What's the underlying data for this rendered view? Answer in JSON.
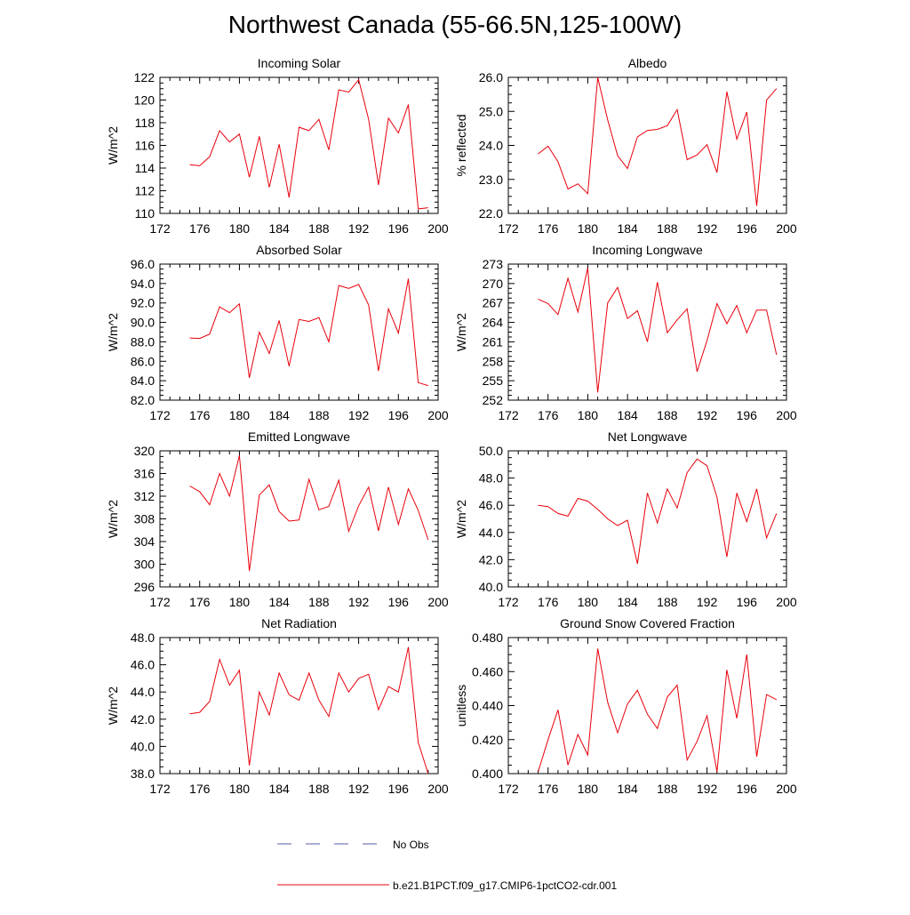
{
  "figure_title": "Northwest Canada (55-66.5N,125-100W)",
  "legend": {
    "no_obs_label": "No Obs",
    "model_label": "b.e21.B1PCT.f09_g17.CMIP6-1pctCO2-cdr.001",
    "no_obs_color": "#5a5aa8",
    "model_color": "#e8000b"
  },
  "chart_data": [
    {
      "type": "line",
      "title": "Incoming Solar",
      "ylabel": "W/m^2",
      "xlim": [
        172,
        200
      ],
      "ylim": [
        110,
        122
      ],
      "xticks": [
        "172",
        "176",
        "180",
        "184",
        "188",
        "192",
        "196",
        "200"
      ],
      "yticks": [
        "110",
        "112",
        "114",
        "116",
        "118",
        "120",
        "122"
      ],
      "x": [
        175,
        176,
        177,
        178,
        179,
        180,
        181,
        182,
        183,
        184,
        185,
        186,
        187,
        188,
        189,
        190,
        191,
        192,
        193,
        194,
        195,
        196,
        197,
        198,
        199
      ],
      "series": [
        {
          "values": [
            114.3,
            114.2,
            115.0,
            117.3,
            116.3,
            117.0,
            113.2,
            116.8,
            112.3,
            116.1,
            111.4,
            117.6,
            117.3,
            118.3,
            115.6,
            120.9,
            120.7,
            121.8,
            118.3,
            112.5,
            118.4,
            117.1,
            119.6,
            110.4,
            110.5
          ]
        }
      ]
    },
    {
      "type": "line",
      "title": "Albedo",
      "ylabel": "% reflected",
      "xlim": [
        172,
        200
      ],
      "ylim": [
        22.0,
        26.0
      ],
      "xticks": [
        "172",
        "176",
        "180",
        "184",
        "188",
        "192",
        "196",
        "200"
      ],
      "yticks": [
        "22.0",
        "23.0",
        "24.0",
        "25.0",
        "26.0"
      ],
      "x": [
        175,
        176,
        177,
        178,
        179,
        180,
        181,
        182,
        183,
        184,
        185,
        186,
        187,
        188,
        189,
        190,
        191,
        192,
        193,
        194,
        195,
        196,
        197,
        198,
        199
      ],
      "series": [
        {
          "values": [
            23.75,
            23.98,
            23.52,
            22.72,
            22.87,
            22.58,
            26.0,
            24.75,
            23.7,
            23.32,
            24.25,
            24.44,
            24.47,
            24.58,
            25.05,
            23.58,
            23.72,
            24.02,
            23.2,
            25.58,
            24.18,
            24.98,
            22.22,
            25.33,
            25.67
          ]
        }
      ]
    },
    {
      "type": "line",
      "title": "Absorbed Solar",
      "ylabel": "W/m^2",
      "xlim": [
        172,
        200
      ],
      "ylim": [
        82.0,
        96.0
      ],
      "xticks": [
        "172",
        "176",
        "180",
        "184",
        "188",
        "192",
        "196",
        "200"
      ],
      "yticks": [
        "82.0",
        "84.0",
        "86.0",
        "88.0",
        "90.0",
        "92.0",
        "94.0",
        "96.0"
      ],
      "x": [
        175,
        176,
        177,
        178,
        179,
        180,
        181,
        182,
        183,
        184,
        185,
        186,
        187,
        188,
        189,
        190,
        191,
        192,
        193,
        194,
        195,
        196,
        197,
        198,
        199
      ],
      "series": [
        {
          "values": [
            88.4,
            88.35,
            88.8,
            91.6,
            91.0,
            91.9,
            84.3,
            89.0,
            86.8,
            90.2,
            85.5,
            90.3,
            90.1,
            90.5,
            88.0,
            93.8,
            93.5,
            93.9,
            91.8,
            85.0,
            91.4,
            88.9,
            94.5,
            83.8,
            83.5
          ]
        }
      ]
    },
    {
      "type": "line",
      "title": "Incoming Longwave",
      "ylabel": "W/m^2",
      "xlim": [
        172,
        200
      ],
      "ylim": [
        252,
        273
      ],
      "xticks": [
        "172",
        "176",
        "180",
        "184",
        "188",
        "192",
        "196",
        "200"
      ],
      "yticks": [
        "252",
        "255",
        "258",
        "261",
        "264",
        "267",
        "270",
        "273"
      ],
      "x": [
        175,
        176,
        177,
        178,
        179,
        180,
        181,
        182,
        183,
        184,
        185,
        186,
        187,
        188,
        189,
        190,
        191,
        192,
        193,
        194,
        195,
        196,
        197,
        198,
        199
      ],
      "series": [
        {
          "values": [
            267.6,
            266.9,
            265.2,
            270.8,
            265.6,
            272.4,
            253.2,
            267.0,
            269.4,
            264.6,
            265.8,
            261.0,
            270.2,
            262.4,
            264.4,
            266.1,
            256.4,
            261.2,
            266.9,
            263.8,
            266.6,
            262.4,
            265.9,
            265.9,
            259.0
          ]
        }
      ]
    },
    {
      "type": "line",
      "title": "Emitted Longwave",
      "ylabel": "W/m^2",
      "xlim": [
        172,
        200
      ],
      "ylim": [
        296,
        320
      ],
      "xticks": [
        "172",
        "176",
        "180",
        "184",
        "188",
        "192",
        "196",
        "200"
      ],
      "yticks": [
        "296",
        "300",
        "304",
        "308",
        "312",
        "316",
        "320"
      ],
      "x": [
        175,
        176,
        177,
        178,
        179,
        180,
        181,
        182,
        183,
        184,
        185,
        186,
        187,
        188,
        189,
        190,
        191,
        192,
        193,
        194,
        195,
        196,
        197,
        198,
        199
      ],
      "series": [
        {
          "values": [
            313.8,
            312.8,
            310.5,
            316.0,
            312.0,
            319.2,
            298.8,
            312.2,
            314.0,
            309.3,
            307.6,
            307.8,
            315.0,
            309.6,
            310.2,
            314.8,
            305.8,
            310.3,
            313.6,
            305.9,
            313.6,
            307.0,
            313.3,
            309.5,
            304.3
          ]
        }
      ]
    },
    {
      "type": "line",
      "title": "Net Longwave",
      "ylabel": "W/m^2",
      "xlim": [
        172,
        200
      ],
      "ylim": [
        40.0,
        50.0
      ],
      "xticks": [
        "172",
        "176",
        "180",
        "184",
        "188",
        "192",
        "196",
        "200"
      ],
      "yticks": [
        "40.0",
        "42.0",
        "44.0",
        "46.0",
        "48.0",
        "50.0"
      ],
      "x": [
        175,
        176,
        177,
        178,
        179,
        180,
        181,
        182,
        183,
        184,
        185,
        186,
        187,
        188,
        189,
        190,
        191,
        192,
        193,
        194,
        195,
        196,
        197,
        198,
        199
      ],
      "series": [
        {
          "values": [
            46.0,
            45.9,
            45.4,
            45.2,
            46.5,
            46.3,
            45.7,
            45.0,
            44.5,
            44.9,
            41.7,
            46.9,
            44.7,
            47.2,
            45.8,
            48.4,
            49.4,
            48.9,
            46.6,
            42.2,
            46.9,
            44.8,
            47.2,
            43.6,
            45.4
          ]
        }
      ]
    },
    {
      "type": "line",
      "title": "Net Radiation",
      "ylabel": "W/m^2",
      "xlim": [
        172,
        200
      ],
      "ylim": [
        38.0,
        48.0
      ],
      "xticks": [
        "172",
        "176",
        "180",
        "184",
        "188",
        "192",
        "196",
        "200"
      ],
      "yticks": [
        "38.0",
        "40.0",
        "42.0",
        "44.0",
        "46.0",
        "48.0"
      ],
      "x": [
        175,
        176,
        177,
        178,
        179,
        180,
        181,
        182,
        183,
        184,
        185,
        186,
        187,
        188,
        189,
        190,
        191,
        192,
        193,
        194,
        195,
        196,
        197,
        198,
        199
      ],
      "series": [
        {
          "values": [
            42.4,
            42.5,
            43.3,
            46.4,
            44.5,
            45.6,
            38.6,
            44.0,
            42.3,
            45.4,
            43.8,
            43.4,
            45.4,
            43.4,
            42.2,
            45.4,
            44.0,
            45.0,
            45.3,
            42.7,
            44.4,
            44.0,
            47.3,
            40.3,
            38.0
          ]
        }
      ]
    },
    {
      "type": "line",
      "title": "Ground Snow Covered Fraction",
      "ylabel": "unitless",
      "xlim": [
        172,
        200
      ],
      "ylim": [
        0.4,
        0.48
      ],
      "xticks": [
        "172",
        "176",
        "180",
        "184",
        "188",
        "192",
        "196",
        "200"
      ],
      "yticks": [
        "0.400",
        "0.420",
        "0.440",
        "0.460",
        "0.480"
      ],
      "x": [
        175,
        176,
        177,
        178,
        179,
        180,
        181,
        182,
        183,
        184,
        185,
        186,
        187,
        188,
        189,
        190,
        191,
        192,
        193,
        194,
        195,
        196,
        197,
        198,
        199
      ],
      "series": [
        {
          "values": [
            0.401,
            0.42,
            0.4375,
            0.405,
            0.423,
            0.411,
            0.4735,
            0.442,
            0.424,
            0.441,
            0.449,
            0.435,
            0.4265,
            0.445,
            0.452,
            0.408,
            0.419,
            0.434,
            0.401,
            0.461,
            0.4325,
            0.47,
            0.41,
            0.4465,
            0.4435
          ]
        }
      ]
    }
  ]
}
